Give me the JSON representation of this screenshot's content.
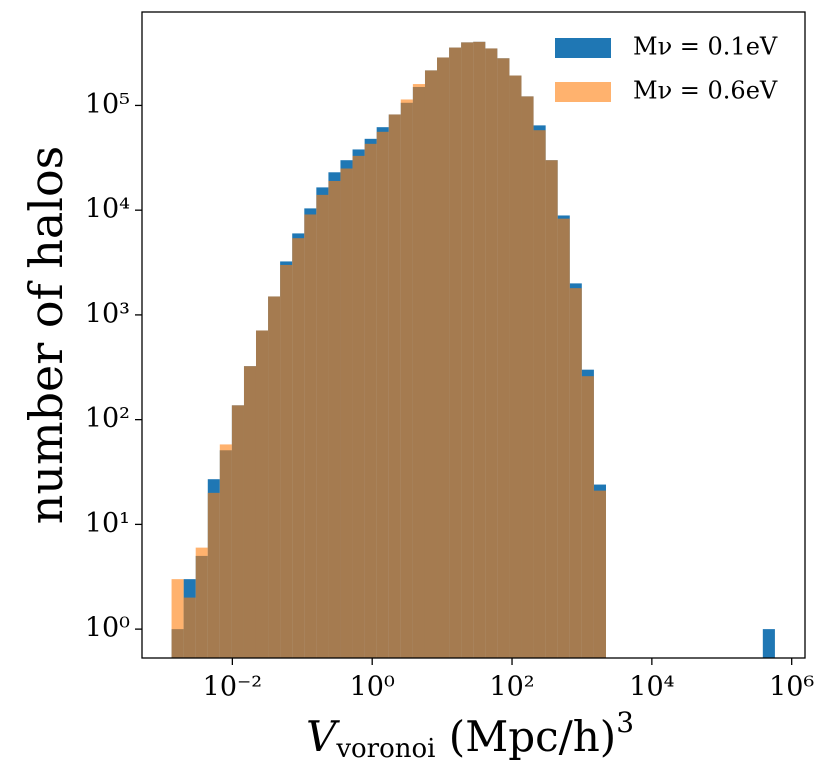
{
  "chart_data": {
    "type": "histogram",
    "xlabel": {
      "main": "V",
      "sub": "voronoi",
      "rest": " (Mpc/h)",
      "sup": "3"
    },
    "ylabel": "number of halos",
    "xscale": "log",
    "yscale": "log",
    "legend": "upper right",
    "bins": [
      0.00135,
      0.00201,
      0.00299,
      0.00445,
      0.00661,
      0.00984,
      0.01466,
      0.02178,
      0.03243,
      0.0482,
      0.0718,
      0.1069,
      0.1589,
      0.2366,
      0.3516,
      0.5236,
      0.7798,
      1.159,
      1.726,
      2.564,
      3.819,
      5.689,
      8.453,
      12.59,
      18.71,
      27.86,
      41.5,
      61.66,
      91.83,
      136.5,
      203.2,
      302.7,
      449.8,
      669.9,
      995.4,
      1483,
      2208,
      3281,
      4887,
      7261,
      10814,
      16106,
      23933,
      35645,
      52966,
      78886,
      117490,
      174582,
      260016,
      386367,
      575440
    ],
    "series": [
      {
        "name": "Mν = 0.1eV",
        "color": "#1f77b4",
        "alpha": 1,
        "values": [
          1,
          3,
          5,
          27,
          51,
          137,
          324,
          710,
          1500,
          3240,
          6000,
          10400,
          16500,
          23000,
          30000,
          38000,
          48000,
          62000,
          82000,
          106000,
          150000,
          216000,
          287000,
          357000,
          400000,
          405000,
          350000,
          282000,
          193000,
          122000,
          64500,
          30000,
          8900,
          2000,
          300,
          24,
          0,
          0,
          0,
          0,
          0,
          0,
          0,
          0,
          0,
          0,
          0,
          0,
          0,
          1
        ]
      },
      {
        "name": "Mν = 0.6eV",
        "color": "#ff7f0e",
        "alpha": 0.6,
        "values": [
          3,
          2,
          6,
          20,
          58,
          137,
          324,
          710,
          1500,
          3000,
          5400,
          9100,
          14000,
          19000,
          25000,
          33000,
          43000,
          56000,
          82000,
          114000,
          160000,
          216000,
          287000,
          357000,
          400000,
          405000,
          350000,
          282000,
          193000,
          122000,
          58000,
          30000,
          8300,
          1800,
          260,
          21,
          0,
          0,
          0,
          0,
          0,
          0,
          0,
          0,
          0,
          0,
          0,
          0,
          0,
          0
        ]
      }
    ],
    "xlim": [
      0.00051,
      1550000
    ],
    "xticks": [
      {
        "value": 0.01,
        "label": "10⁻²"
      },
      {
        "value": 1,
        "label": "10⁰"
      },
      {
        "value": 100,
        "label": "10²"
      },
      {
        "value": 10000,
        "label": "10⁴"
      },
      {
        "value": 1000000,
        "label": "10⁶"
      }
    ],
    "ylim": [
      0.53,
      780000
    ],
    "yticks": [
      {
        "value": 1,
        "label": "10⁰"
      },
      {
        "value": 10,
        "label": "10¹"
      },
      {
        "value": 100,
        "label": "10²"
      },
      {
        "value": 1000,
        "label": "10³"
      },
      {
        "value": 10000,
        "label": "10⁴"
      },
      {
        "value": 100000,
        "label": "10⁵"
      }
    ]
  }
}
